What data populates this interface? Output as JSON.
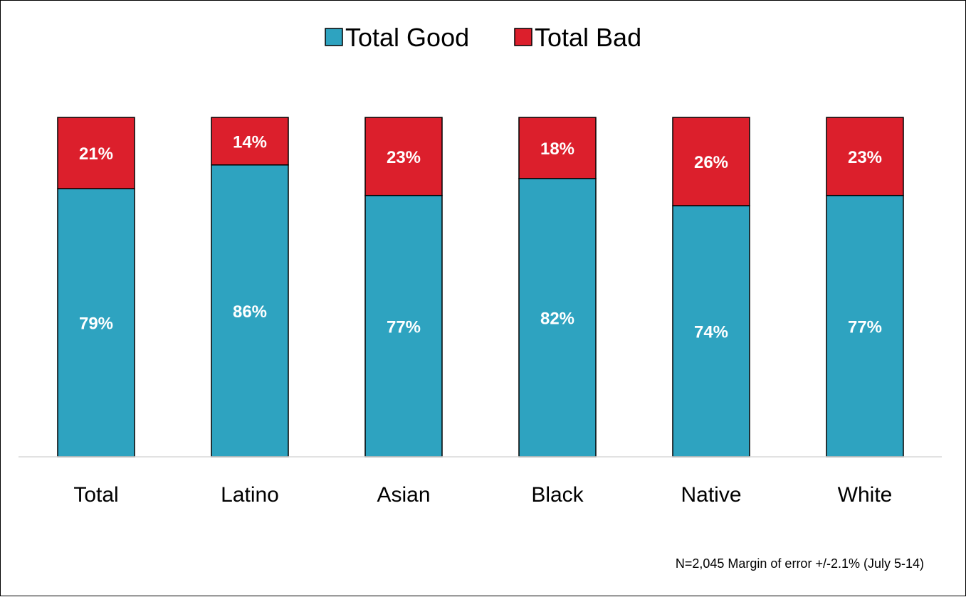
{
  "chart_data": {
    "type": "bar",
    "stacked": true,
    "categories": [
      "Total",
      "Latino",
      "Asian",
      "Black",
      "Native",
      "White"
    ],
    "series": [
      {
        "name": "Total Good",
        "values": [
          79,
          86,
          77,
          82,
          74,
          77
        ],
        "color": "#2ea3c0"
      },
      {
        "name": "Total Bad",
        "values": [
          21,
          14,
          23,
          18,
          26,
          23
        ],
        "color": "#dc1f2c"
      }
    ],
    "value_suffix": "%",
    "ylim": [
      0,
      100
    ],
    "legend_position": "top-center",
    "grid": false,
    "note": "N=2,045 Margin of error +/-2.1% (July 5-14)"
  }
}
